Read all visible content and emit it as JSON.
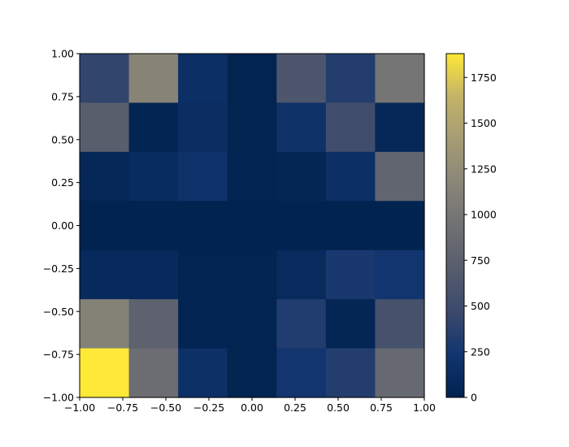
{
  "chart_data": {
    "type": "heatmap",
    "title": "",
    "xlabel": "",
    "ylabel": "",
    "xlim": [
      -1.0,
      1.0
    ],
    "ylim": [
      -1.0,
      1.0
    ],
    "x_edges": [
      -1.0,
      -0.7143,
      -0.4286,
      -0.1429,
      0.1429,
      0.4286,
      0.7143,
      1.0
    ],
    "y_edges": [
      -1.0,
      -0.7143,
      -0.4286,
      -0.1429,
      0.1429,
      0.4286,
      0.7143,
      1.0
    ],
    "x_ticks": [
      -1.0,
      -0.75,
      -0.5,
      -0.25,
      0.0,
      0.25,
      0.5,
      0.75,
      1.0
    ],
    "x_tick_labels": [
      "−1.00",
      "−0.75",
      "−0.50",
      "−0.25",
      "0.00",
      "0.25",
      "0.50",
      "0.75",
      "1.00"
    ],
    "y_ticks": [
      1.0,
      0.75,
      0.5,
      0.25,
      0.0,
      -0.25,
      -0.5,
      -0.75,
      -1.0
    ],
    "y_tick_labels": [
      "1.00",
      "0.75",
      "0.50",
      "0.25",
      "0.00",
      "−0.25",
      "−0.50",
      "−0.75",
      "−1.00"
    ],
    "values_top_to_bottom": [
      [
        420,
        1150,
        160,
        20,
        620,
        330,
        980
      ],
      [
        720,
        40,
        140,
        20,
        180,
        520,
        60
      ],
      [
        60,
        120,
        190,
        20,
        50,
        160,
        800
      ],
      [
        10,
        10,
        10,
        10,
        10,
        10,
        10
      ],
      [
        90,
        90,
        20,
        20,
        100,
        270,
        230
      ],
      [
        1120,
        760,
        30,
        20,
        320,
        50,
        560
      ],
      [
        1880,
        890,
        170,
        20,
        230,
        330,
        850
      ]
    ],
    "colormap": "cividis",
    "colorbar": {
      "range": [
        0,
        1880
      ],
      "ticks": [
        0,
        250,
        500,
        750,
        1000,
        1250,
        1500,
        1750
      ],
      "tick_labels": [
        "0",
        "250",
        "500",
        "750",
        "1000",
        "1250",
        "1500",
        "1750"
      ]
    }
  }
}
